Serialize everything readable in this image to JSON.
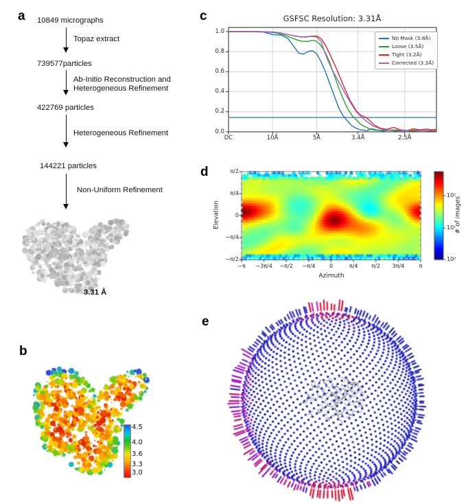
{
  "panels": {
    "a": {
      "letter": "a",
      "nodes": [
        "10849 micrographs",
        "739577particles",
        "422769 particles",
        "144221 particles"
      ],
      "steps": [
        "Topaz extract",
        "Ab-Initio Reconstruction and\nHeterogeneous Refinement",
        "Heterogeneous Refinement",
        "Non-Uniform Refinement"
      ],
      "resolution_label": "3.31 Å"
    },
    "b": {
      "letter": "b",
      "colorbar_ticks": [
        "4.5",
        "4.0",
        "3.6",
        "3.3",
        "3.0"
      ]
    },
    "c": {
      "letter": "c"
    },
    "d": {
      "letter": "d"
    },
    "e": {
      "letter": "e"
    }
  },
  "chart_data": [
    {
      "type": "line",
      "title": "GSFSC Resolution: 3.31Å",
      "xlabel": "",
      "ylabel": "",
      "xlim": [
        0,
        0.472
      ],
      "ylim": [
        0,
        1.0
      ],
      "x_ticks": [
        {
          "freq": 0.0,
          "label": "DC"
        },
        {
          "freq": 0.1,
          "label": "10Å"
        },
        {
          "freq": 0.2,
          "label": "5Å"
        },
        {
          "freq": 0.294,
          "label": "3.4Å"
        },
        {
          "freq": 0.4,
          "label": "2.5Å"
        }
      ],
      "y_ticks": [
        0.0,
        0.2,
        0.4,
        0.6,
        0.8,
        1.0
      ],
      "threshold": 0.143,
      "threshold_color": "#1f77b4",
      "grid": true,
      "legend_position": "upper right",
      "series": [
        {
          "name": "No Mask (3.8Å)",
          "color": "#1f77b4",
          "points": [
            [
              0,
              1
            ],
            [
              0.05,
              1
            ],
            [
              0.08,
              0.995
            ],
            [
              0.1,
              0.97
            ],
            [
              0.12,
              0.965
            ],
            [
              0.135,
              0.93
            ],
            [
              0.15,
              0.84
            ],
            [
              0.16,
              0.785
            ],
            [
              0.17,
              0.775
            ],
            [
              0.18,
              0.8
            ],
            [
              0.19,
              0.81
            ],
            [
              0.2,
              0.78
            ],
            [
              0.21,
              0.7
            ],
            [
              0.22,
              0.6
            ],
            [
              0.23,
              0.48
            ],
            [
              0.24,
              0.36
            ],
            [
              0.25,
              0.24
            ],
            [
              0.26,
              0.16
            ],
            [
              0.268,
              0.12
            ],
            [
              0.28,
              0.06
            ],
            [
              0.29,
              0.035
            ],
            [
              0.3,
              0.02
            ],
            [
              0.315,
              0.012
            ],
            [
              0.325,
              0.03
            ],
            [
              0.335,
              0.02
            ],
            [
              0.35,
              0.008
            ],
            [
              0.365,
              0.015
            ],
            [
              0.38,
              0.008
            ],
            [
              0.4,
              0.012
            ],
            [
              0.42,
              0.008
            ],
            [
              0.44,
              0.012
            ],
            [
              0.46,
              0.008
            ],
            [
              0.472,
              0.01
            ]
          ]
        },
        {
          "name": "Loose (3.5Å)",
          "color": "#2ca02c",
          "points": [
            [
              0,
              1
            ],
            [
              0.06,
              1
            ],
            [
              0.09,
              0.995
            ],
            [
              0.11,
              0.985
            ],
            [
              0.13,
              0.96
            ],
            [
              0.15,
              0.925
            ],
            [
              0.165,
              0.905
            ],
            [
              0.18,
              0.902
            ],
            [
              0.19,
              0.912
            ],
            [
              0.2,
              0.905
            ],
            [
              0.21,
              0.86
            ],
            [
              0.22,
              0.79
            ],
            [
              0.23,
              0.69
            ],
            [
              0.24,
              0.565
            ],
            [
              0.25,
              0.44
            ],
            [
              0.26,
              0.33
            ],
            [
              0.27,
              0.235
            ],
            [
              0.28,
              0.165
            ],
            [
              0.29,
              0.12
            ],
            [
              0.3,
              0.075
            ],
            [
              0.315,
              0.04
            ],
            [
              0.33,
              0.018
            ],
            [
              0.345,
              0.012
            ],
            [
              0.36,
              0.018
            ],
            [
              0.375,
              0.01
            ],
            [
              0.39,
              0.018
            ],
            [
              0.41,
              0.01
            ],
            [
              0.43,
              0.015
            ],
            [
              0.45,
              0.01
            ],
            [
              0.472,
              0.012
            ]
          ]
        },
        {
          "name": "Tight (3.2Å)",
          "color": "#d62728",
          "points": [
            [
              0,
              1
            ],
            [
              0.07,
              1
            ],
            [
              0.1,
              0.995
            ],
            [
              0.12,
              0.985
            ],
            [
              0.14,
              0.965
            ],
            [
              0.16,
              0.95
            ],
            [
              0.175,
              0.945
            ],
            [
              0.19,
              0.955
            ],
            [
              0.2,
              0.955
            ],
            [
              0.21,
              0.93
            ],
            [
              0.22,
              0.865
            ],
            [
              0.23,
              0.775
            ],
            [
              0.245,
              0.63
            ],
            [
              0.26,
              0.47
            ],
            [
              0.275,
              0.32
            ],
            [
              0.29,
              0.21
            ],
            [
              0.3,
              0.165
            ],
            [
              0.3125,
              0.143
            ],
            [
              0.32,
              0.115
            ],
            [
              0.33,
              0.07
            ],
            [
              0.345,
              0.035
            ],
            [
              0.36,
              0.025
            ],
            [
              0.375,
              0.045
            ],
            [
              0.39,
              0.02
            ],
            [
              0.405,
              0.012
            ],
            [
              0.42,
              0.03
            ],
            [
              0.435,
              0.02
            ],
            [
              0.45,
              0.028
            ],
            [
              0.46,
              0.02
            ],
            [
              0.472,
              0.025
            ]
          ]
        },
        {
          "name": "Corrected (3.3Å)",
          "color": "#9467bd",
          "points": [
            [
              0,
              1
            ],
            [
              0.07,
              1
            ],
            [
              0.1,
              0.995
            ],
            [
              0.125,
              0.98
            ],
            [
              0.145,
              0.96
            ],
            [
              0.165,
              0.945
            ],
            [
              0.185,
              0.952
            ],
            [
              0.2,
              0.948
            ],
            [
              0.21,
              0.9
            ],
            [
              0.218,
              0.8
            ],
            [
              0.225,
              0.72
            ],
            [
              0.235,
              0.62
            ],
            [
              0.25,
              0.5
            ],
            [
              0.265,
              0.38
            ],
            [
              0.28,
              0.27
            ],
            [
              0.29,
              0.2
            ],
            [
              0.303,
              0.143
            ],
            [
              0.315,
              0.1
            ],
            [
              0.33,
              0.055
            ],
            [
              0.345,
              0.028
            ],
            [
              0.36,
              0.015
            ],
            [
              0.38,
              0.02
            ],
            [
              0.4,
              0.01
            ],
            [
              0.42,
              0.018
            ],
            [
              0.44,
              0.012
            ],
            [
              0.46,
              0.015
            ],
            [
              0.472,
              0.012
            ]
          ]
        }
      ]
    },
    {
      "type": "heatmap",
      "xlabel": "Azimuth",
      "ylabel": "Elevation",
      "x_ticks": [
        "−π",
        "−3π/4",
        "−π/2",
        "−π/4",
        "0",
        "π/4",
        "π/2",
        "3π/4",
        "π"
      ],
      "y_ticks": [
        "π/2",
        "π/4",
        "0",
        "−π/4",
        "−π/2"
      ],
      "colorbar_label": "# of images",
      "colorbar_ticks": [
        "10²",
        "10¹",
        "10⁰"
      ],
      "colormap": "jet",
      "background_log10_count": 1.5,
      "hotspots": [
        {
          "azimuth": 0.0,
          "elevation": -0.2,
          "log10_count": 2.7
        },
        {
          "azimuth": 3.14,
          "elevation": 0.1,
          "log10_count": 2.5
        },
        {
          "azimuth": -3.14,
          "elevation": 0.1,
          "log10_count": 2.5
        }
      ]
    }
  ]
}
